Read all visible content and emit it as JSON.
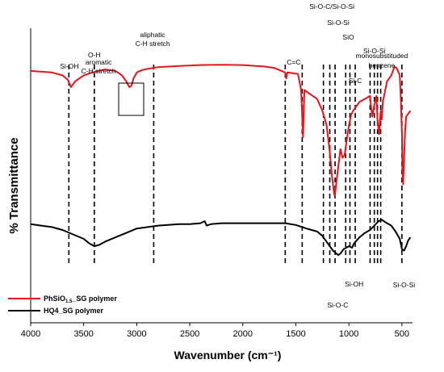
{
  "chart_data": {
    "type": "line",
    "title": "",
    "xlabel": "Wavenumber (cm⁻¹)",
    "ylabel": "% Transmittance",
    "xlim": [
      4000,
      400
    ],
    "x_reversed": true,
    "ylim": [
      0,
      100
    ],
    "y_ticks_shown": false,
    "grid": false,
    "x_ticks": [
      "4000",
      "3500",
      "3000",
      "2500",
      "2000",
      "1500",
      "1000",
      "500"
    ],
    "legend_position": "bottom-left",
    "series": [
      {
        "name": "PhSiO1.5_SG polymer",
        "color": "#e8141c",
        "points": [
          [
            4000,
            85.5
          ],
          [
            3800,
            85
          ],
          [
            3700,
            84
          ],
          [
            3650,
            82.5
          ],
          [
            3620,
            80
          ],
          [
            3580,
            82
          ],
          [
            3500,
            84
          ],
          [
            3420,
            85
          ],
          [
            3300,
            86
          ],
          [
            3200,
            85.5
          ],
          [
            3140,
            84
          ],
          [
            3100,
            82
          ],
          [
            3070,
            80
          ],
          [
            3050,
            80.5
          ],
          [
            3030,
            83
          ],
          [
            3000,
            85
          ],
          [
            2950,
            85.8
          ],
          [
            2900,
            86.2
          ],
          [
            2800,
            86.8
          ],
          [
            2600,
            87.2
          ],
          [
            2400,
            87.5
          ],
          [
            2200,
            87.6
          ],
          [
            2000,
            87.5
          ],
          [
            1800,
            87
          ],
          [
            1700,
            86.5
          ],
          [
            1600,
            85
          ],
          [
            1590,
            83
          ],
          [
            1580,
            85
          ],
          [
            1480,
            84.5
          ],
          [
            1450,
            79
          ],
          [
            1432,
            63
          ],
          [
            1420,
            79
          ],
          [
            1380,
            78
          ],
          [
            1300,
            76
          ],
          [
            1250,
            72
          ],
          [
            1210,
            67
          ],
          [
            1180,
            58
          ],
          [
            1160,
            50
          ],
          [
            1140,
            44
          ],
          [
            1133,
            43
          ],
          [
            1120,
            47
          ],
          [
            1100,
            53
          ],
          [
            1080,
            59
          ],
          [
            1060,
            56
          ],
          [
            1040,
            57
          ],
          [
            1020,
            62
          ],
          [
            1000,
            67
          ],
          [
            980,
            70.5
          ],
          [
            960,
            72
          ],
          [
            900,
            75
          ],
          [
            850,
            76
          ],
          [
            800,
            77
          ],
          [
            790,
            73
          ],
          [
            780,
            70
          ],
          [
            760,
            74
          ],
          [
            740,
            77
          ],
          [
            730,
            69
          ],
          [
            715,
            64
          ],
          [
            700,
            72
          ],
          [
            690,
            69
          ],
          [
            680,
            75
          ],
          [
            640,
            82
          ],
          [
            600,
            84
          ],
          [
            570,
            87
          ],
          [
            550,
            86.5
          ],
          [
            520,
            84
          ],
          [
            510,
            76
          ],
          [
            500,
            64
          ],
          [
            495,
            52
          ],
          [
            488,
            47
          ],
          [
            480,
            56
          ],
          [
            470,
            65
          ],
          [
            460,
            70
          ],
          [
            440,
            71
          ],
          [
            420,
            72
          ]
        ]
      },
      {
        "name": "HQ4_SG polymer",
        "color": "#000000",
        "points": [
          [
            4000,
            33.5
          ],
          [
            3900,
            33
          ],
          [
            3800,
            32.5
          ],
          [
            3700,
            31.5
          ],
          [
            3600,
            30
          ],
          [
            3500,
            28.5
          ],
          [
            3450,
            27
          ],
          [
            3400,
            26
          ],
          [
            3350,
            26.5
          ],
          [
            3300,
            27.5
          ],
          [
            3200,
            29
          ],
          [
            3100,
            30.5
          ],
          [
            3000,
            32
          ],
          [
            2800,
            33
          ],
          [
            2600,
            33.5
          ],
          [
            2500,
            33.5
          ],
          [
            2400,
            33.8
          ],
          [
            2360,
            34.5
          ],
          [
            2340,
            33
          ],
          [
            2300,
            33.5
          ],
          [
            2200,
            33.8
          ],
          [
            2000,
            33.8
          ],
          [
            1800,
            33.8
          ],
          [
            1600,
            33.8
          ],
          [
            1500,
            33.2
          ],
          [
            1400,
            32
          ],
          [
            1300,
            31
          ],
          [
            1250,
            29.5
          ],
          [
            1200,
            27
          ],
          [
            1150,
            24.5
          ],
          [
            1100,
            23
          ],
          [
            1080,
            23.5
          ],
          [
            1050,
            25
          ],
          [
            1000,
            26
          ],
          [
            970,
            25.5
          ],
          [
            950,
            27
          ],
          [
            900,
            29
          ],
          [
            850,
            30.5
          ],
          [
            800,
            31.5
          ],
          [
            760,
            33
          ],
          [
            720,
            34.5
          ],
          [
            690,
            35
          ],
          [
            650,
            34
          ],
          [
            600,
            33
          ],
          [
            560,
            31
          ],
          [
            520,
            28.5
          ],
          [
            500,
            25
          ],
          [
            480,
            24.5
          ],
          [
            460,
            26
          ],
          [
            440,
            28
          ],
          [
            420,
            29
          ]
        ]
      }
    ],
    "annotations": [
      {
        "text": "Si-OH",
        "x": 3635
      },
      {
        "text": "O-H",
        "x": 3400
      },
      {
        "text": "aromatic",
        "x": 3360
      },
      {
        "text": "C-H stretch",
        "x": 3360
      },
      {
        "text": "aliphatic",
        "x": 2850
      },
      {
        "text": "C-H stretch",
        "x": 2850
      },
      {
        "text": "C=C",
        "x": 1520
      },
      {
        "text": "Si-O-C/Si-O-Si",
        "x": 1160
      },
      {
        "text": "Si-O-Si",
        "x": 1100
      },
      {
        "text": "SiO",
        "x": 1005
      },
      {
        "text": "Si-C",
        "x": 940
      },
      {
        "text": "Si-O-Si",
        "x": 760
      },
      {
        "text": "monosubstituded",
        "x": 690
      },
      {
        "text": "benzene",
        "x": 690
      },
      {
        "text": "Si-OH",
        "x": 950
      },
      {
        "text": "Si-O-C",
        "x": 1105
      },
      {
        "text": "Si-O-Si",
        "x": 480
      }
    ],
    "marker_lines_x": [
      3640,
      3400,
      2840,
      1600,
      1440,
      1240,
      1180,
      1130,
      1030,
      990,
      940,
      800,
      760,
      730,
      700,
      500
    ]
  },
  "legend": {
    "entries": [
      {
        "label": "PhSiO",
        "sub": "1.5",
        "suffix": "_SG polymer",
        "color": "#e8141c"
      },
      {
        "label": "HQ4_SG polymer",
        "sub": "",
        "suffix": "",
        "color": "#000000"
      }
    ]
  }
}
